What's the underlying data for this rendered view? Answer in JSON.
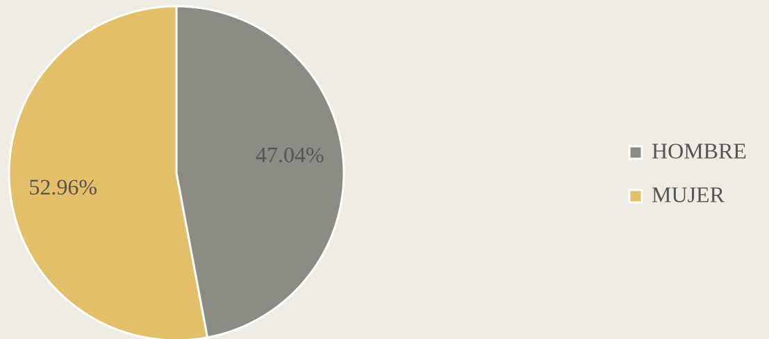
{
  "chart_data": {
    "type": "pie",
    "categories": [
      "HOMBRE",
      "MUJER"
    ],
    "values": [
      47.04,
      52.96
    ],
    "value_labels": [
      "47.04%",
      "52.96%"
    ],
    "colors": [
      "#8c8c85",
      "#e4bf69"
    ],
    "legend": "right"
  }
}
